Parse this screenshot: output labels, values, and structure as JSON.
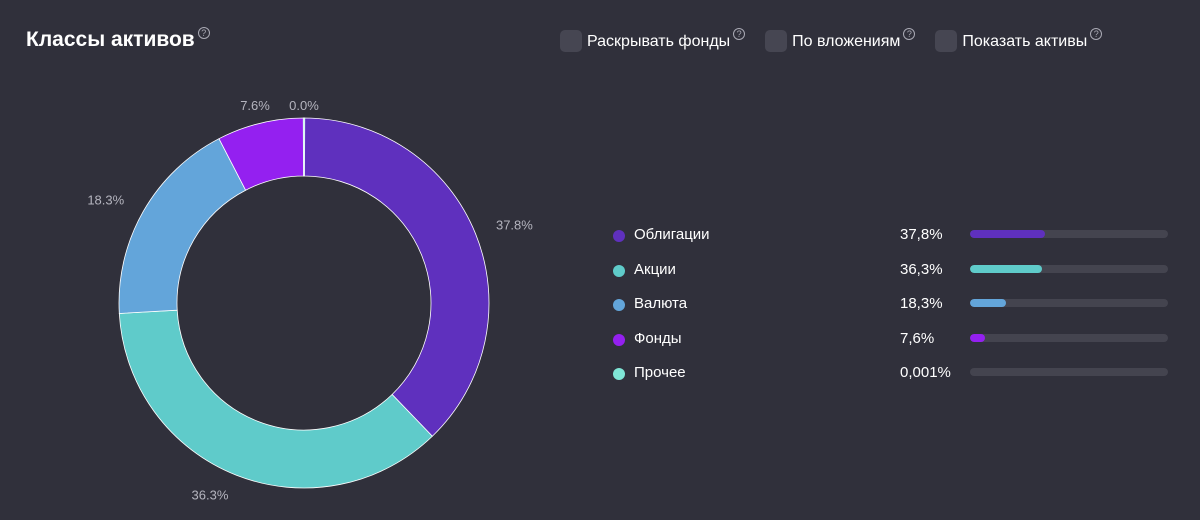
{
  "header": {
    "title": "Классы активов",
    "help": "?"
  },
  "options": [
    {
      "label": "Раскрывать фонды",
      "help": "?"
    },
    {
      "label": "По вложениям",
      "help": "?"
    },
    {
      "label": "Показать активы",
      "help": "?"
    }
  ],
  "chart_data": {
    "type": "pie",
    "donut": true,
    "slices": [
      {
        "name": "Облигации",
        "value": 37.8,
        "label": "37.8%",
        "legend_value": "37,8%",
        "color": "#5f30be"
      },
      {
        "name": "Акции",
        "value": 36.3,
        "label": "36.3%",
        "legend_value": "36,3%",
        "color": "#5fcbca"
      },
      {
        "name": "Валюта",
        "value": 18.3,
        "label": "18.3%",
        "legend_value": "18,3%",
        "color": "#63a5da"
      },
      {
        "name": "Фонды",
        "value": 7.6,
        "label": "7.6%",
        "legend_value": "7,6%",
        "color": "#9420f0"
      },
      {
        "name": "Прочее",
        "value": 0.001,
        "label": "0.0%",
        "legend_value": "0,001%",
        "color": "#7fe6d6"
      }
    ]
  }
}
